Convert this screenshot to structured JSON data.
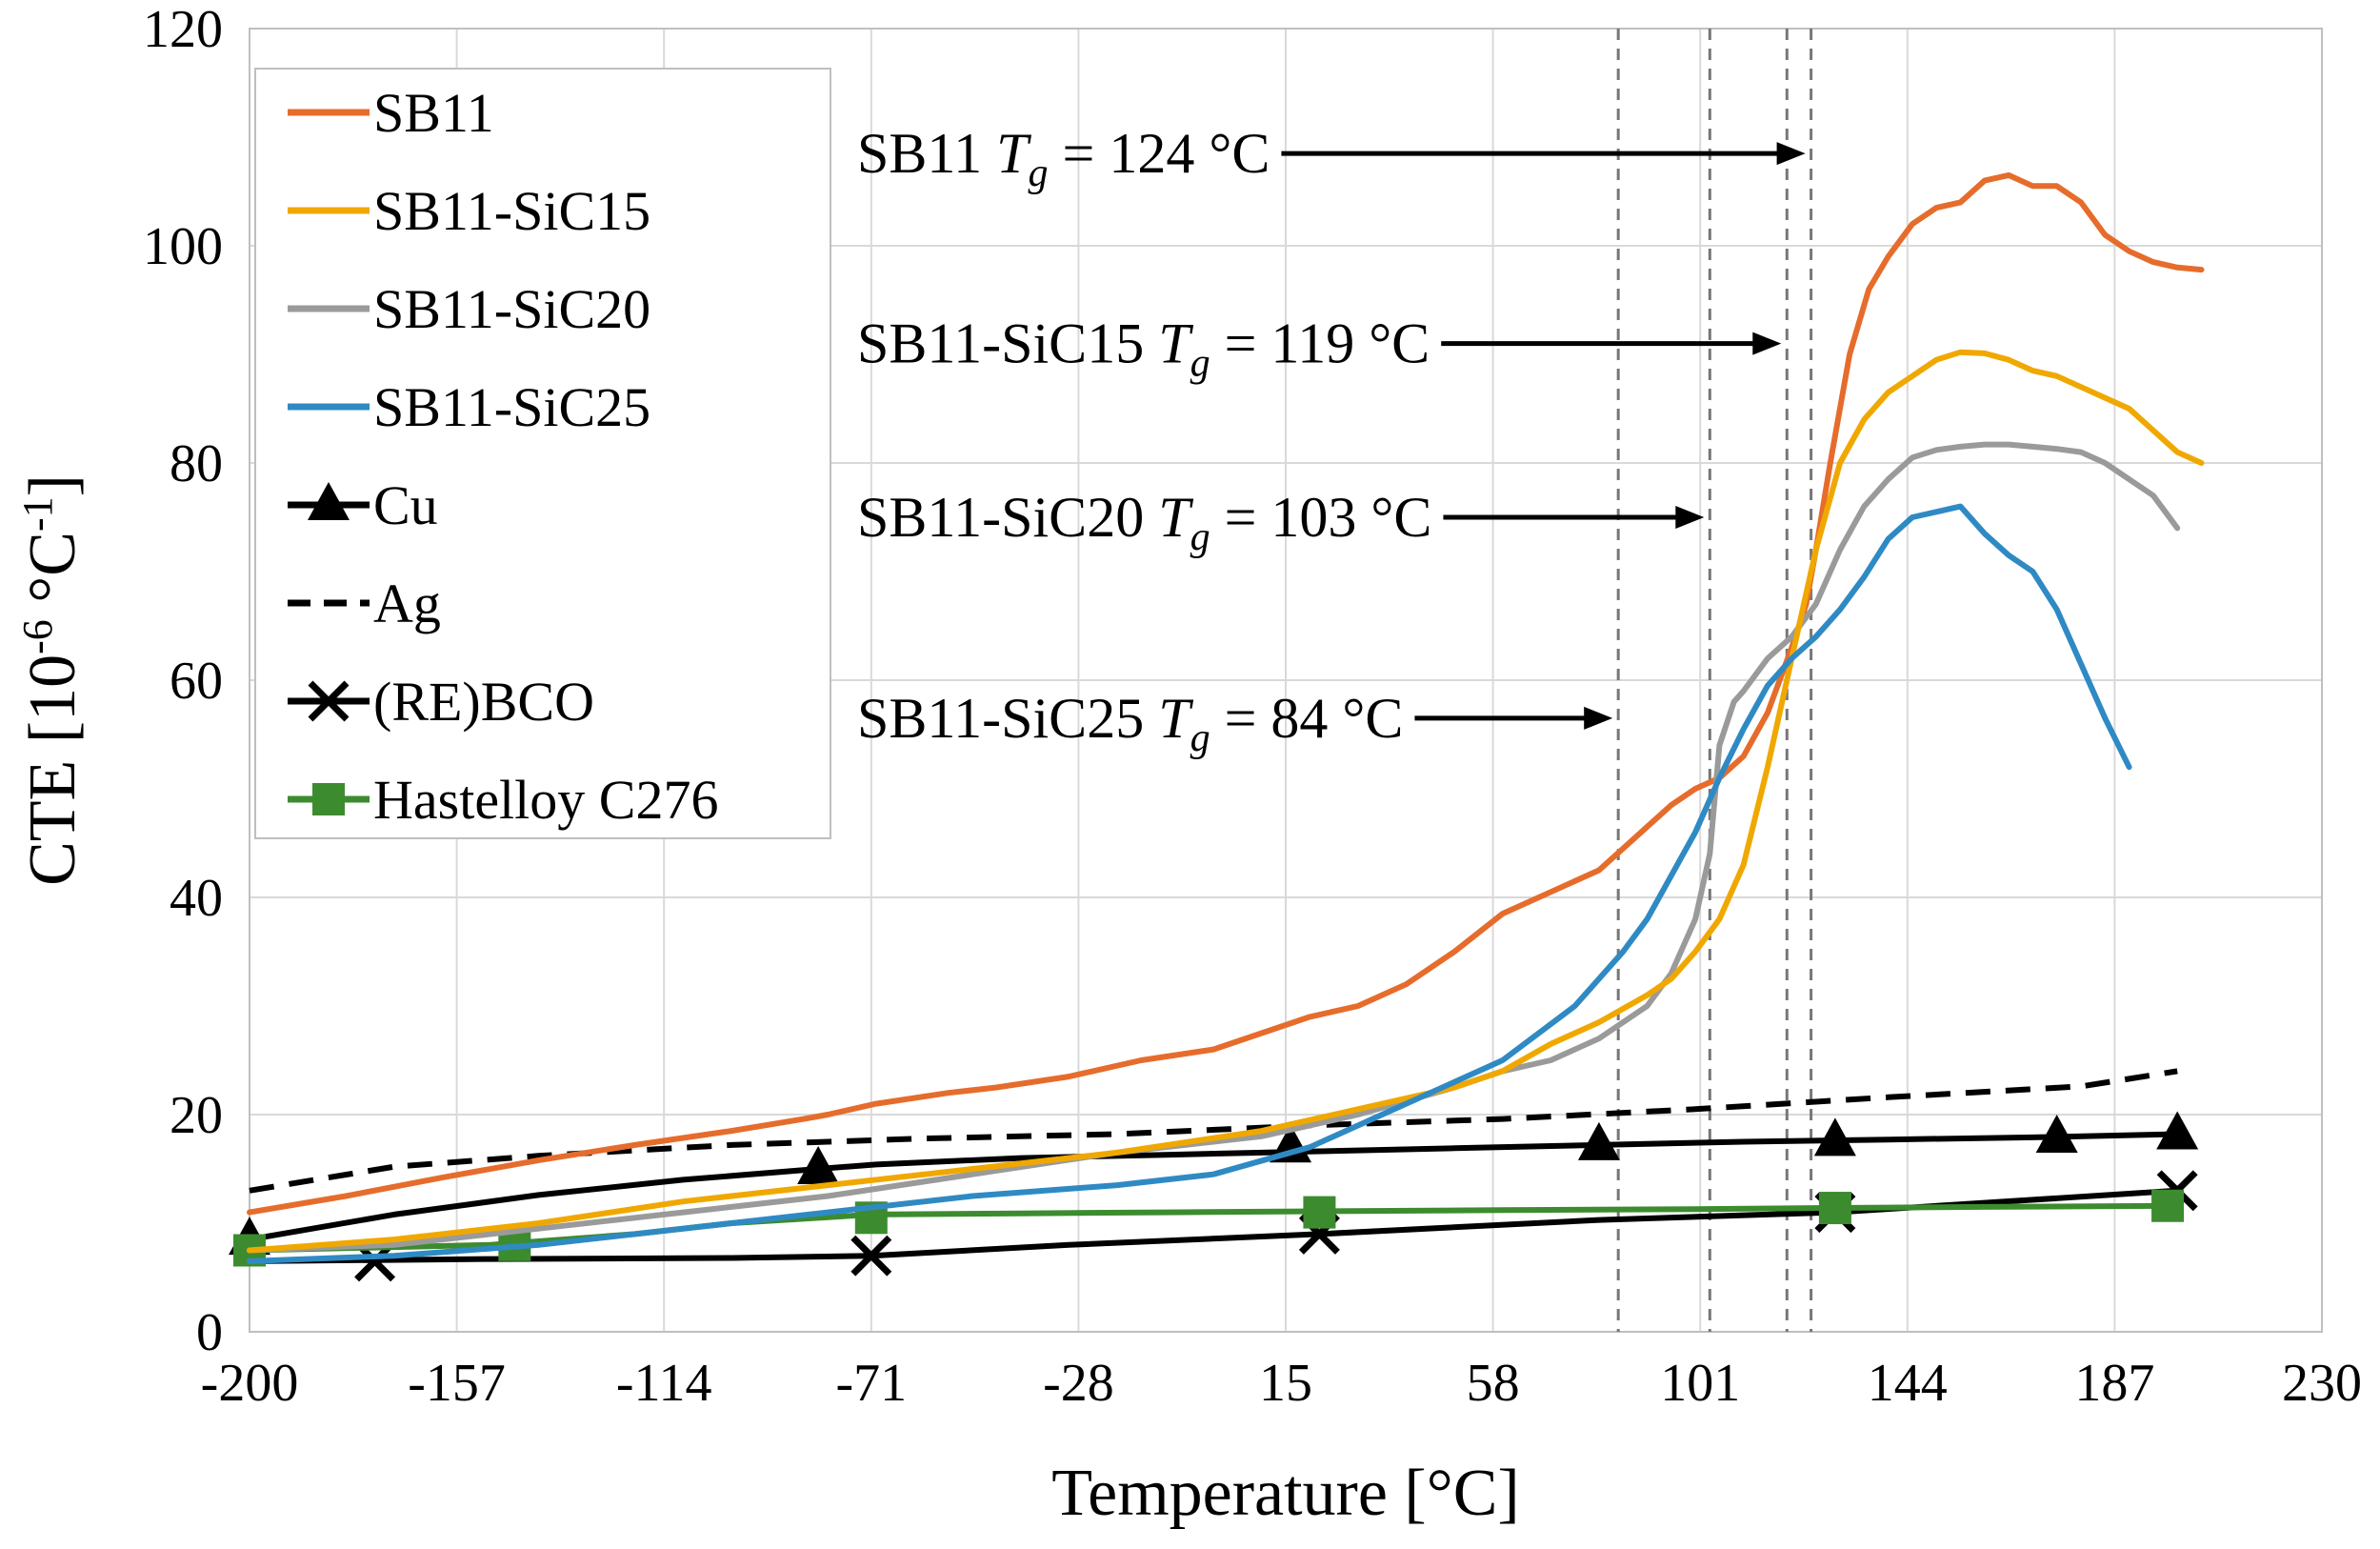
{
  "chart_data": {
    "type": "line",
    "title": "",
    "xlabel": "Temperature [°C]",
    "ylabel_main": "CTE [10",
    "ylabel_sup1": "-6",
    "ylabel_mid": " °C",
    "ylabel_sup2": "-1",
    "ylabel_end": "]",
    "xlim": [
      -200,
      230
    ],
    "ylim": [
      0,
      120
    ],
    "xticks": [
      -200,
      -157,
      -114,
      -71,
      -28,
      15,
      58,
      101,
      144,
      187,
      230
    ],
    "yticks": [
      0,
      20,
      40,
      60,
      80,
      100,
      120
    ],
    "grid": true,
    "legend_position": "top-left",
    "colors": {
      "SB11": "#e66c2c",
      "SB11-SiC15": "#f0a800",
      "SB11-SiC20": "#9a9a9a",
      "SB11-SiC25": "#2f8ac4",
      "Cu": "#000000",
      "Ag": "#000000",
      "(RE)BCO": "#000000",
      "Hastelloy C276": "#3c8c2f",
      "grid": "#d9d9d9"
    },
    "series": [
      {
        "name": "SB11",
        "style": "line",
        "x": [
          -200,
          -180,
          -160,
          -140,
          -120,
          -100,
          -85,
          -80,
          -70,
          -55,
          -45,
          -30,
          -15,
          0,
          10,
          20,
          30,
          40,
          50,
          60,
          70,
          80,
          85,
          90,
          95,
          100,
          105,
          110,
          115,
          120,
          123,
          125,
          128,
          132,
          136,
          140,
          145,
          150,
          155,
          160,
          165,
          170,
          175,
          180,
          185,
          190,
          195,
          200,
          205
        ],
        "y": [
          11,
          12.5,
          14.2,
          15.8,
          17.2,
          18.5,
          19.6,
          20,
          21,
          22,
          22.5,
          23.5,
          25,
          26,
          27.5,
          29,
          30,
          32,
          35,
          38.5,
          40.5,
          42.5,
          44.5,
          46.5,
          48.5,
          50,
          51,
          53,
          57,
          63,
          67,
          72,
          80,
          90,
          96,
          99,
          102,
          103.5,
          104,
          106,
          106.5,
          105.5,
          105.5,
          104,
          101,
          99.5,
          98.5,
          98,
          97.8
        ]
      },
      {
        "name": "SB11-SiC15",
        "style": "line",
        "x": [
          -200,
          -170,
          -140,
          -110,
          -80,
          -50,
          -20,
          10,
          30,
          50,
          60,
          70,
          80,
          90,
          95,
          100,
          105,
          110,
          115,
          120,
          125,
          130,
          135,
          140,
          145,
          150,
          155,
          160,
          165,
          170,
          175,
          180,
          185,
          190,
          195,
          200,
          205
        ],
        "y": [
          7.5,
          8.5,
          10,
          12,
          13.5,
          15,
          16.5,
          18.5,
          20.5,
          22.5,
          24,
          26.5,
          28.5,
          31,
          32.5,
          35,
          38,
          43,
          52,
          62,
          72,
          80,
          84,
          86.5,
          88,
          89.5,
          90.2,
          90.1,
          89.5,
          88.5,
          88,
          87,
          86,
          85,
          83,
          81,
          80
        ]
      },
      {
        "name": "SB11-SiC20",
        "style": "line",
        "x": [
          -200,
          -170,
          -140,
          -110,
          -80,
          -50,
          -20,
          10,
          30,
          50,
          60,
          70,
          80,
          90,
          95,
          100,
          103,
          105,
          108,
          110,
          115,
          120,
          125,
          130,
          135,
          140,
          145,
          150,
          155,
          160,
          165,
          170,
          175,
          180,
          185,
          190,
          195,
          200
        ],
        "y": [
          7.5,
          8,
          9.5,
          11,
          12.5,
          14.5,
          16.5,
          18,
          20,
          22.5,
          24,
          25,
          27,
          30,
          33,
          38,
          44,
          54,
          58,
          59,
          62,
          64,
          67,
          72,
          76,
          78.5,
          80.5,
          81.2,
          81.5,
          81.7,
          81.7,
          81.5,
          81.3,
          81,
          80,
          78.5,
          77,
          74
        ]
      },
      {
        "name": "SB11-SiC25",
        "style": "line",
        "x": [
          -200,
          -170,
          -140,
          -110,
          -80,
          -50,
          -20,
          0,
          20,
          40,
          60,
          75,
          85,
          90,
          95,
          100,
          105,
          110,
          115,
          120,
          125,
          130,
          135,
          140,
          145,
          150,
          155,
          160,
          165,
          170,
          175,
          180,
          185,
          190
        ],
        "y": [
          6.5,
          7,
          8,
          9.5,
          11,
          12.5,
          13.5,
          14.5,
          17,
          21,
          25,
          30,
          35,
          38,
          42,
          46,
          51,
          55.5,
          59.5,
          62,
          64,
          66.5,
          69.5,
          73,
          75,
          75.5,
          76,
          73.5,
          71.5,
          70,
          66.5,
          61.5,
          56.5,
          52
        ]
      },
      {
        "name": "Cu",
        "style": "line-triangle",
        "x": [
          -200,
          -170,
          -140,
          -110,
          -82,
          -70,
          -40,
          -10,
          20,
          50,
          80,
          110,
          140,
          170,
          200
        ],
        "y": [
          8.5,
          10.8,
          12.6,
          14,
          15,
          15.4,
          16,
          16.3,
          16.6,
          16.9,
          17.2,
          17.5,
          17.7,
          17.9,
          18.2
        ],
        "marker_x": [
          -200,
          -82,
          16,
          80,
          129,
          175,
          200
        ],
        "marker_y": [
          8.5,
          15,
          17,
          17.2,
          17.6,
          17.9,
          18.2
        ]
      },
      {
        "name": "Ag",
        "style": "dashed",
        "x": [
          -200,
          -170,
          -140,
          -100,
          -60,
          -20,
          20,
          60,
          100,
          140,
          180,
          200
        ],
        "y": [
          13,
          15.2,
          16.2,
          17.2,
          17.8,
          18.2,
          19,
          19.6,
          20.5,
          21.6,
          22.6,
          24
        ]
      },
      {
        "name": "(RE)BCO",
        "style": "line-x",
        "x": [
          -200,
          -150,
          -100,
          -71,
          -30,
          22,
          80,
          129,
          200
        ],
        "y": [
          6.5,
          6.7,
          6.8,
          7,
          8,
          9,
          10.3,
          11,
          13
        ],
        "marker_x": [
          -174,
          -71,
          22,
          129,
          200
        ],
        "marker_y": [
          6.5,
          7,
          9,
          11,
          13
        ]
      },
      {
        "name": "Hastelloy C276",
        "style": "line-square",
        "x": [
          -200,
          -150,
          -120,
          -100,
          -71,
          -40,
          -10,
          22,
          60,
          100,
          129,
          160,
          200
        ],
        "y": [
          7.5,
          8,
          9,
          10,
          10.8,
          10.9,
          11,
          11.1,
          11.2,
          11.3,
          11.4,
          11.5,
          11.6
        ],
        "marker_x": [
          -200,
          -145,
          -71,
          22,
          129,
          198
        ],
        "marker_y": [
          7.5,
          8,
          10.5,
          11,
          11.4,
          11.6
        ]
      }
    ],
    "vlines": [
      84,
      103,
      119,
      124
    ],
    "annotations": [
      {
        "label": "SB11 ",
        "sub": "g",
        "value": " = 124 °C",
        "target_x": 124,
        "y": 108.5,
        "text_x": -200,
        "arrow_start_x": 18
      },
      {
        "label": "SB11-SiC15 ",
        "sub": "g",
        "value": " = 119 °C",
        "target_x": 119,
        "y": 91,
        "text_x": -200,
        "arrow_start_x": 17
      },
      {
        "label": "SB11-SiC20 ",
        "sub": "g",
        "value": " = 103 °C",
        "target_x": 103,
        "y": 75,
        "text_x": -200,
        "arrow_start_x": 17
      },
      {
        "label": "SB11-SiC25 ",
        "sub": "g",
        "value": " = 84 °C",
        "target_x": 84,
        "y": 56.5,
        "text_x": -200,
        "arrow_start_x": 16
      }
    ]
  }
}
